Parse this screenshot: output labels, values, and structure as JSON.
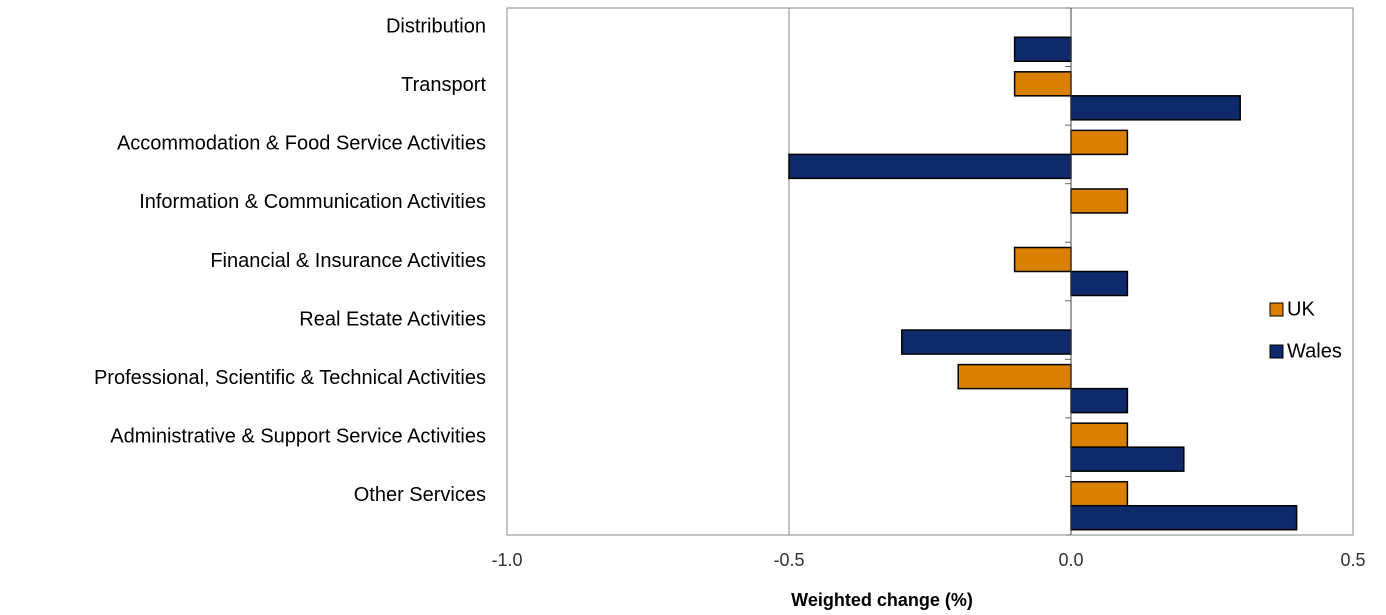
{
  "chart_data": {
    "type": "hbar",
    "xlabel": "Weighted change (%)",
    "categories": [
      "Distribution",
      "Transport",
      "Accommodation & Food Service Activities",
      "Information & Communication Activities",
      "Financial & Insurance Activities",
      "Real Estate Activities",
      "Professional, Scientific & Technical Activities",
      "Administrative & Support Service Activities",
      "Other Services"
    ],
    "series": [
      {
        "name": "UK",
        "color": "#d98000",
        "values": [
          0,
          -0.1,
          0.1,
          0.1,
          -0.1,
          0,
          -0.2,
          0.1,
          0.1
        ]
      },
      {
        "name": "Wales",
        "color": "#0f2a6b",
        "values": [
          -0.1,
          0.3,
          -0.5,
          0,
          0.1,
          -0.3,
          0.1,
          0.2,
          0.4
        ]
      }
    ],
    "xlim": [
      -1,
      0.5
    ],
    "xticks": [
      {
        "value": -1,
        "label": "-1.0"
      },
      -0.5,
      {
        "value": 0,
        "label": "0.0"
      },
      0.5
    ],
    "grid": true,
    "legend": "right"
  }
}
